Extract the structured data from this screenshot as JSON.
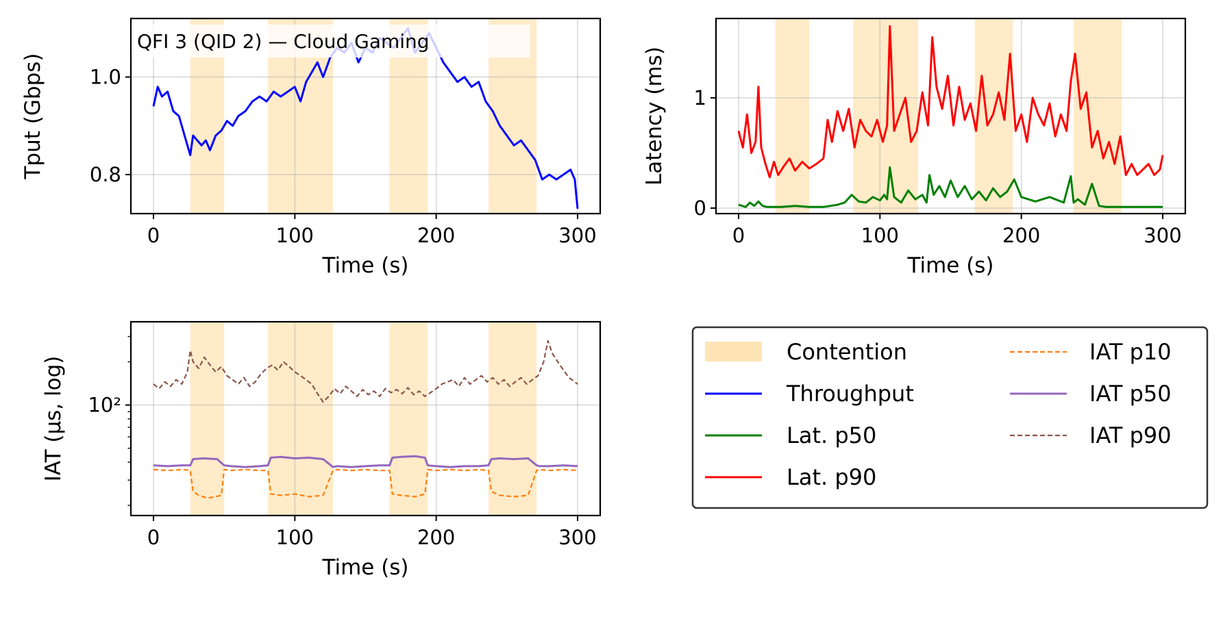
{
  "chart_data": [
    {
      "id": "throughput",
      "type": "line",
      "title": "QFI 3 (QID 2) — Cloud Gaming",
      "xlabel": "Time (s)",
      "ylabel": "Tput (Gbps)",
      "xlim": [
        -16,
        316
      ],
      "ylim": [
        0.72,
        1.12
      ],
      "yscale": "linear",
      "xticks": [
        0,
        100,
        200,
        300
      ],
      "xtick_labels": [
        "0",
        "100",
        "200",
        "300"
      ],
      "yticks": [
        0.8,
        1.0
      ],
      "ytick_labels": [
        "0.8",
        "1.0"
      ],
      "contention": [
        [
          26,
          50
        ],
        [
          81,
          127
        ],
        [
          167,
          194
        ],
        [
          237,
          271
        ]
      ],
      "series": [
        {
          "name": "Throughput",
          "color": "#0000ff",
          "dash": "solid",
          "x": [
            0,
            3,
            6,
            10,
            14,
            18,
            22,
            26,
            28,
            31,
            34,
            37,
            40,
            44,
            48,
            52,
            56,
            60,
            65,
            70,
            75,
            80,
            85,
            90,
            95,
            100,
            104,
            108,
            112,
            116,
            120,
            125,
            130,
            135,
            140,
            145,
            150,
            155,
            160,
            165,
            170,
            175,
            180,
            185,
            190,
            195,
            200,
            205,
            210,
            215,
            220,
            225,
            230,
            235,
            240,
            245,
            250,
            255,
            260,
            265,
            270,
            275,
            280,
            285,
            290,
            295,
            298,
            300
          ],
          "y": [
            0.94,
            0.98,
            0.96,
            0.97,
            0.93,
            0.92,
            0.88,
            0.84,
            0.88,
            0.87,
            0.86,
            0.87,
            0.85,
            0.88,
            0.89,
            0.91,
            0.9,
            0.92,
            0.93,
            0.95,
            0.96,
            0.95,
            0.97,
            0.96,
            0.97,
            0.98,
            0.95,
            0.99,
            1.01,
            1.03,
            1.0,
            1.04,
            1.06,
            1.05,
            1.07,
            1.03,
            1.06,
            1.05,
            1.08,
            1.07,
            1.06,
            1.08,
            1.1,
            1.05,
            1.07,
            1.09,
            1.06,
            1.03,
            1.01,
            0.99,
            1.0,
            0.98,
            0.99,
            0.95,
            0.93,
            0.9,
            0.88,
            0.86,
            0.87,
            0.85,
            0.83,
            0.79,
            0.8,
            0.79,
            0.8,
            0.81,
            0.79,
            0.73
          ]
        }
      ]
    },
    {
      "id": "latency",
      "type": "line",
      "xlabel": "Time (s)",
      "ylabel": "Latency (ms)",
      "xlim": [
        -16,
        316
      ],
      "ylim": [
        -0.05,
        1.72
      ],
      "yscale": "linear",
      "xticks": [
        0,
        100,
        200,
        300
      ],
      "xtick_labels": [
        "0",
        "100",
        "200",
        "300"
      ],
      "yticks": [
        0,
        1
      ],
      "ytick_labels": [
        "0",
        "1"
      ],
      "contention": [
        [
          26,
          50
        ],
        [
          81,
          127
        ],
        [
          167,
          194
        ],
        [
          237,
          271
        ]
      ],
      "series": [
        {
          "name": "Lat. p50",
          "color": "#008000",
          "dash": "solid",
          "x": [
            0,
            5,
            8,
            11,
            14,
            17,
            20,
            25,
            30,
            40,
            50,
            60,
            70,
            75,
            80,
            85,
            90,
            95,
            100,
            103,
            105,
            107,
            110,
            115,
            120,
            125,
            130,
            133,
            135,
            138,
            142,
            146,
            150,
            155,
            160,
            165,
            170,
            175,
            180,
            185,
            190,
            195,
            200,
            210,
            220,
            230,
            235,
            237,
            240,
            245,
            250,
            255,
            260,
            270,
            280,
            290,
            300
          ],
          "y": [
            0.03,
            0.01,
            0.05,
            0.02,
            0.06,
            0.02,
            0.01,
            0.01,
            0.01,
            0.02,
            0.01,
            0.01,
            0.03,
            0.05,
            0.12,
            0.06,
            0.05,
            0.1,
            0.07,
            0.12,
            0.08,
            0.37,
            0.1,
            0.05,
            0.16,
            0.08,
            0.12,
            0.05,
            0.3,
            0.12,
            0.2,
            0.1,
            0.25,
            0.1,
            0.2,
            0.08,
            0.15,
            0.07,
            0.18,
            0.1,
            0.15,
            0.26,
            0.1,
            0.06,
            0.1,
            0.05,
            0.29,
            0.05,
            0.08,
            0.03,
            0.22,
            0.02,
            0.01,
            0.01,
            0.01,
            0.01,
            0.01
          ]
        },
        {
          "name": "Lat. p90",
          "color": "#ff0000",
          "dash": "solid",
          "x": [
            0,
            3,
            6,
            9,
            12,
            14,
            16,
            19,
            22,
            25,
            28,
            32,
            36,
            40,
            45,
            50,
            55,
            60,
            63,
            66,
            70,
            74,
            78,
            82,
            86,
            90,
            94,
            98,
            102,
            105,
            107,
            110,
            114,
            118,
            122,
            126,
            130,
            134,
            137,
            140,
            144,
            148,
            152,
            156,
            160,
            164,
            168,
            172,
            176,
            180,
            184,
            188,
            192,
            196,
            200,
            204,
            208,
            212,
            216,
            220,
            224,
            228,
            232,
            235,
            238,
            242,
            246,
            250,
            254,
            258,
            262,
            266,
            270,
            274,
            278,
            282,
            286,
            290,
            294,
            298,
            300
          ],
          "y": [
            0.7,
            0.55,
            0.85,
            0.5,
            0.6,
            1.1,
            0.55,
            0.4,
            0.28,
            0.42,
            0.3,
            0.38,
            0.45,
            0.34,
            0.42,
            0.36,
            0.4,
            0.45,
            0.8,
            0.6,
            0.88,
            0.7,
            0.9,
            0.55,
            0.8,
            0.7,
            0.65,
            0.8,
            0.6,
            0.75,
            1.65,
            0.7,
            0.85,
            1.0,
            0.6,
            0.7,
            1.05,
            0.75,
            1.55,
            1.1,
            0.9,
            1.2,
            0.75,
            1.1,
            0.8,
            0.95,
            0.7,
            1.2,
            0.75,
            0.85,
            1.05,
            0.8,
            1.4,
            0.7,
            0.85,
            0.6,
            1.0,
            0.85,
            0.75,
            0.95,
            0.65,
            0.85,
            0.7,
            1.15,
            1.4,
            0.9,
            1.05,
            0.55,
            0.7,
            0.45,
            0.6,
            0.4,
            0.65,
            0.3,
            0.4,
            0.3,
            0.35,
            0.4,
            0.3,
            0.35,
            0.48
          ]
        }
      ]
    },
    {
      "id": "iat",
      "type": "line",
      "xlabel": "Time (s)",
      "ylabel": "IAT (µs, log)",
      "xlim": [
        -16,
        316
      ],
      "ylim": [
        17,
        380
      ],
      "yscale": "log",
      "xticks": [
        0,
        100,
        200,
        300
      ],
      "xtick_labels": [
        "0",
        "100",
        "200",
        "300"
      ],
      "yticks": [
        100
      ],
      "ytick_labels": [
        "10²"
      ],
      "contention": [
        [
          26,
          50
        ],
        [
          81,
          127
        ],
        [
          167,
          194
        ],
        [
          237,
          271
        ]
      ],
      "series": [
        {
          "name": "IAT p10",
          "color": "#ff7f0e",
          "dash": "dashed",
          "x": [
            0,
            10,
            20,
            26,
            28,
            32,
            38,
            44,
            48,
            50,
            55,
            65,
            75,
            81,
            83,
            90,
            100,
            110,
            120,
            127,
            130,
            140,
            150,
            160,
            167,
            169,
            175,
            185,
            192,
            194,
            200,
            210,
            220,
            230,
            237,
            239,
            245,
            255,
            265,
            271,
            273,
            280,
            290,
            300
          ],
          "y": [
            35.5,
            35,
            35.5,
            35,
            25,
            23.5,
            22.5,
            23,
            23.5,
            35.5,
            35,
            35.5,
            35,
            35,
            24,
            23.5,
            24,
            23,
            23.5,
            35,
            35.5,
            35,
            35.5,
            35,
            35,
            24,
            23.5,
            23,
            24,
            35.5,
            35,
            35.5,
            35,
            35.5,
            35,
            25,
            23.5,
            23,
            23.5,
            35,
            35.5,
            35,
            35.5,
            35
          ]
        },
        {
          "name": "IAT p50",
          "color": "#9467bd",
          "dash": "solid",
          "x": [
            0,
            10,
            20,
            26,
            28,
            35,
            45,
            50,
            55,
            65,
            75,
            81,
            83,
            90,
            100,
            110,
            120,
            127,
            130,
            140,
            150,
            160,
            167,
            169,
            175,
            185,
            192,
            194,
            200,
            210,
            220,
            230,
            237,
            239,
            245,
            255,
            265,
            271,
            273,
            280,
            290,
            300
          ],
          "y": [
            38,
            37.5,
            38,
            38,
            42,
            42.5,
            42,
            38,
            37.5,
            37,
            37.5,
            38,
            43,
            43.5,
            42.5,
            43,
            42,
            37,
            37.5,
            37,
            37.5,
            38,
            38,
            43,
            43.5,
            44,
            43,
            38,
            37.5,
            37,
            37.5,
            37.5,
            38,
            42,
            42.5,
            42,
            42.5,
            38,
            37.5,
            37.5,
            38,
            37.5
          ]
        },
        {
          "name": "IAT p90",
          "color": "#8c564b",
          "dash": "dashed",
          "x": [
            0,
            4,
            8,
            12,
            16,
            20,
            24,
            26,
            28,
            32,
            36,
            40,
            44,
            48,
            52,
            56,
            60,
            64,
            68,
            72,
            76,
            80,
            84,
            88,
            92,
            96,
            100,
            104,
            108,
            112,
            116,
            120,
            124,
            128,
            132,
            136,
            140,
            144,
            148,
            152,
            156,
            160,
            164,
            168,
            172,
            176,
            180,
            184,
            188,
            192,
            196,
            200,
            204,
            208,
            212,
            216,
            220,
            224,
            228,
            232,
            236,
            240,
            244,
            248,
            252,
            256,
            260,
            264,
            268,
            272,
            276,
            279,
            282,
            286,
            290,
            294,
            298,
            300
          ],
          "y": [
            140,
            130,
            145,
            135,
            150,
            140,
            170,
            240,
            200,
            180,
            215,
            190,
            170,
            185,
            160,
            150,
            140,
            155,
            135,
            145,
            165,
            180,
            190,
            175,
            200,
            185,
            170,
            160,
            150,
            140,
            120,
            105,
            115,
            130,
            120,
            135,
            125,
            115,
            128,
            118,
            125,
            115,
            130,
            122,
            128,
            120,
            132,
            118,
            125,
            115,
            122,
            130,
            140,
            145,
            150,
            135,
            155,
            140,
            150,
            160,
            145,
            155,
            140,
            150,
            135,
            145,
            155,
            140,
            150,
            160,
            200,
            280,
            230,
            200,
            175,
            155,
            145,
            140
          ]
        }
      ]
    }
  ],
  "legend": {
    "items": [
      {
        "label": "Contention",
        "kind": "patch",
        "color": "#ffe4b5",
        "dash": "solid"
      },
      {
        "label": "Throughput",
        "kind": "line",
        "color": "#0000ff",
        "dash": "solid"
      },
      {
        "label": "Lat. p50",
        "kind": "line",
        "color": "#008000",
        "dash": "solid"
      },
      {
        "label": "Lat. p90",
        "kind": "line",
        "color": "#ff0000",
        "dash": "solid"
      },
      {
        "label": "IAT p10",
        "kind": "line",
        "color": "#ff7f0e",
        "dash": "dashed"
      },
      {
        "label": "IAT p50",
        "kind": "line",
        "color": "#9467bd",
        "dash": "solid"
      },
      {
        "label": "IAT p90",
        "kind": "line",
        "color": "#8c564b",
        "dash": "dashed"
      }
    ]
  }
}
